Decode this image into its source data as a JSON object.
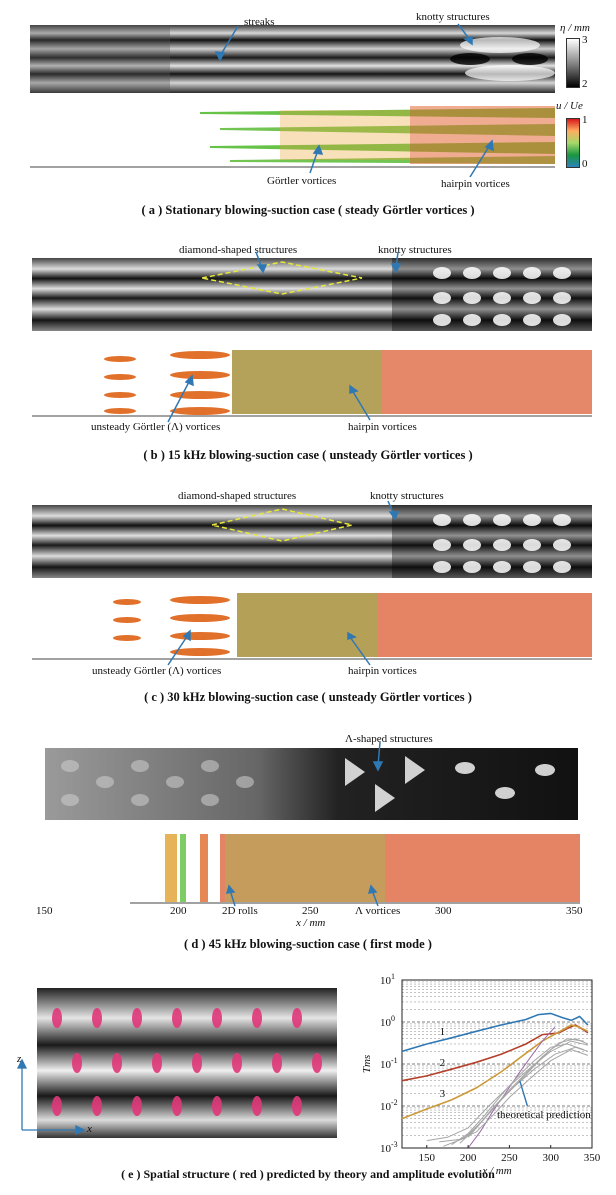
{
  "colorbars": {
    "eta": {
      "label": "η / mm",
      "max": "3",
      "min": "2"
    },
    "u": {
      "label": "u / Ue",
      "max": "1",
      "min": "0"
    }
  },
  "panel_a": {
    "annotations": {
      "streaks": "streaks",
      "knotty": "knotty structures",
      "gortler": "Görtler vortices",
      "hairpin": "hairpin vortices"
    },
    "caption": "( a )  Stationary blowing-suction case ( steady Görtler vortices )"
  },
  "panel_b": {
    "annotations": {
      "diamond": "diamond-shaped structures",
      "knotty": "knotty structures",
      "unsteady": "unsteady Görtler (Λ)  vortices",
      "hairpin": "hairpin vortices"
    },
    "caption": "( b )  15 kHz blowing-suction case ( unsteady Görtler vortices )"
  },
  "panel_c": {
    "annotations": {
      "diamond": "diamond-shaped structures",
      "knotty": "knotty structures",
      "unsteady": "unsteady Görtler (Λ)  vortices",
      "hairpin": "hairpin vortices"
    },
    "caption": "( c )  30 kHz blowing-suction case ( unsteady Görtler vortices )"
  },
  "panel_d": {
    "annotations": {
      "lambda_shaped": "Λ-shaped structures",
      "rolls": "2D rolls",
      "lambda_vortices": "Λ  vortices"
    },
    "axis_ticks": [
      "150",
      "200",
      "250",
      "300",
      "350"
    ],
    "xlabel": "x / mm",
    "caption": "( d )  45 kHz blowing-suction case ( first mode )"
  },
  "panel_e": {
    "axis_z": "z",
    "axis_x": "x",
    "caption": "( e )  Spatial structure ( red )  predicted by theory and amplitude evolution"
  },
  "chart_data": {
    "type": "line",
    "ylabel": "Tms",
    "xlabel": "x / mm",
    "xlim": [
      120,
      350
    ],
    "ylim": [
      0.001,
      10
    ],
    "yscale": "log",
    "x_ticks": [
      "150",
      "200",
      "250",
      "300",
      "350"
    ],
    "y_ticks": [
      "10^1",
      "10^0",
      "10^-1",
      "10^-2",
      "10^-3"
    ],
    "grid": true,
    "annotation": "theoretical prediction",
    "series": [
      {
        "name": "1",
        "color": "#2f78b4",
        "x": [
          120,
          150,
          180,
          210,
          240,
          270,
          285,
          300,
          315,
          325,
          335,
          345
        ],
        "y": [
          0.2,
          0.3,
          0.42,
          0.6,
          0.85,
          1.15,
          1.5,
          1.6,
          1.25,
          1.1,
          1.35,
          0.85
        ]
      },
      {
        "name": "2",
        "color": "#b4402a",
        "x": [
          120,
          150,
          180,
          210,
          240,
          270,
          290,
          310,
          320,
          330,
          340,
          345
        ],
        "y": [
          0.04,
          0.052,
          0.075,
          0.11,
          0.17,
          0.3,
          0.5,
          0.55,
          0.7,
          0.85,
          0.65,
          0.55
        ]
      },
      {
        "name": "3",
        "color": "#cc9a3a",
        "x": [
          120,
          150,
          180,
          210,
          240,
          270,
          290,
          310,
          325,
          335,
          345
        ],
        "y": [
          0.005,
          0.0085,
          0.014,
          0.027,
          0.065,
          0.18,
          0.35,
          0.58,
          0.85,
          0.75,
          0.6
        ]
      },
      {
        "name": "",
        "color": "#9c6aa8",
        "x": [
          200,
          215,
          230,
          245,
          260,
          275,
          290,
          305
        ],
        "y": [
          0.001,
          0.0025,
          0.0075,
          0.02,
          0.055,
          0.14,
          0.35,
          0.75
        ]
      },
      {
        "name": "",
        "color": "#a6a6a6",
        "x": [
          180,
          200,
          220,
          240,
          260,
          280,
          300,
          320,
          340
        ],
        "y": [
          0.0012,
          0.0022,
          0.006,
          0.018,
          0.05,
          0.12,
          0.25,
          0.3,
          0.22
        ]
      },
      {
        "name": "",
        "color": "#a6a6a6",
        "x": [
          150,
          175,
          200,
          225,
          250,
          275,
          300,
          325,
          345
        ],
        "y": [
          0.0015,
          0.0018,
          0.003,
          0.01,
          0.03,
          0.08,
          0.2,
          0.35,
          0.28
        ]
      },
      {
        "name": "",
        "color": "#a6a6a6",
        "x": [
          170,
          195,
          215,
          235,
          255,
          280,
          305,
          330,
          345
        ],
        "y": [
          0.0011,
          0.0017,
          0.004,
          0.011,
          0.028,
          0.075,
          0.17,
          0.25,
          0.2
        ]
      },
      {
        "name": "",
        "color": "#a6a6a6",
        "x": [
          190,
          210,
          230,
          250,
          270,
          290,
          310,
          330,
          345
        ],
        "y": [
          0.0013,
          0.003,
          0.009,
          0.024,
          0.06,
          0.15,
          0.32,
          0.4,
          0.3
        ]
      },
      {
        "name": "",
        "color": "#a6a6a6",
        "x": [
          200,
          220,
          240,
          260,
          280,
          300,
          320,
          340
        ],
        "y": [
          0.0018,
          0.005,
          0.014,
          0.035,
          0.09,
          0.22,
          0.4,
          0.35
        ]
      },
      {
        "name": "",
        "color": "#a6a6a6",
        "x": [
          165,
          190,
          210,
          230,
          250,
          275,
          300,
          325,
          345
        ],
        "y": [
          0.0014,
          0.0016,
          0.0024,
          0.006,
          0.016,
          0.045,
          0.12,
          0.22,
          0.16
        ]
      }
    ]
  }
}
